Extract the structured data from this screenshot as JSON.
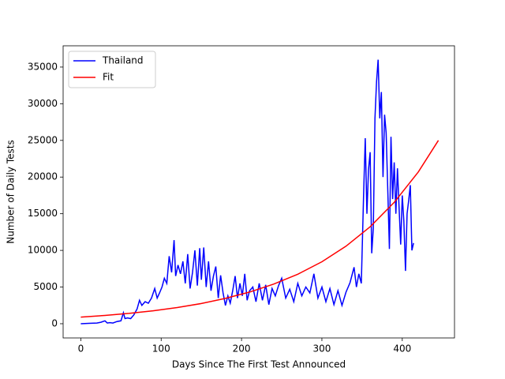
{
  "chart_data": {
    "type": "line",
    "xlabel": "Days Since The First Test Announced",
    "ylabel": "Number of Daily Tests",
    "xlim": [
      -22,
      465
    ],
    "ylim": [
      -1940,
      37900
    ],
    "xticks": [
      0,
      100,
      200,
      300,
      400
    ],
    "yticks": [
      0,
      5000,
      10000,
      15000,
      20000,
      25000,
      30000,
      35000
    ],
    "legend": "upper left",
    "series": [
      {
        "name": "Thailand",
        "color": "#0000ff",
        "x": [
          0,
          10,
          20,
          25,
          30,
          33,
          36,
          40,
          45,
          50,
          53,
          55,
          58,
          62,
          66,
          70,
          73,
          76,
          80,
          84,
          88,
          92,
          95,
          98,
          101,
          104,
          107,
          110,
          113,
          116,
          118,
          121,
          124,
          127,
          130,
          133,
          136,
          139,
          142,
          145,
          148,
          150,
          153,
          156,
          159,
          162,
          165,
          168,
          171,
          174,
          177,
          180,
          183,
          186,
          189,
          192,
          195,
          198,
          201,
          204,
          207,
          210,
          214,
          218,
          222,
          226,
          230,
          234,
          238,
          242,
          246,
          250,
          255,
          260,
          265,
          270,
          275,
          280,
          285,
          290,
          295,
          300,
          305,
          310,
          315,
          320,
          325,
          330,
          335,
          340,
          343,
          346,
          349,
          352,
          354,
          356,
          358,
          360,
          362,
          364,
          366,
          368,
          370,
          372,
          374,
          376,
          378,
          380,
          382,
          384,
          386,
          388,
          390,
          392,
          394,
          396,
          398,
          400,
          402,
          404,
          406,
          408,
          410,
          412,
          414
        ],
        "values": [
          0,
          50,
          100,
          200,
          400,
          100,
          150,
          100,
          300,
          400,
          1500,
          700,
          800,
          700,
          1200,
          2000,
          3200,
          2500,
          3000,
          2800,
          3500,
          4800,
          3500,
          4200,
          5000,
          6200,
          5500,
          9200,
          7000,
          11400,
          6500,
          8000,
          6800,
          8500,
          5500,
          9500,
          4800,
          7000,
          10000,
          5200,
          10300,
          6000,
          10400,
          5000,
          8500,
          4500,
          6500,
          7800,
          3500,
          6600,
          4200,
          2500,
          3800,
          2800,
          4500,
          6500,
          3500,
          5500,
          3800,
          6800,
          3200,
          4500,
          5000,
          3000,
          5500,
          3200,
          5300,
          2600,
          4800,
          3800,
          5200,
          6200,
          3500,
          4700,
          3000,
          5500,
          3800,
          5000,
          4200,
          6800,
          3500,
          5000,
          3000,
          4800,
          2600,
          4500,
          2500,
          4300,
          5600,
          7700,
          5000,
          6800,
          5500,
          18000,
          25300,
          15000,
          21000,
          23400,
          9600,
          13000,
          28000,
          33000,
          36000,
          28000,
          31600,
          20000,
          28500,
          26000,
          18000,
          10200,
          25500,
          17000,
          22000,
          15000,
          21200,
          16000,
          10800,
          17500,
          14000,
          7200,
          15000,
          16800,
          18900,
          10000,
          11000
        ]
      },
      {
        "name": "Fit",
        "color": "#ff0000",
        "x": [
          0,
          30,
          60,
          90,
          120,
          150,
          180,
          210,
          240,
          270,
          300,
          330,
          360,
          390,
          420,
          445
        ],
        "values": [
          900,
          1126,
          1409,
          1762,
          2204,
          2758,
          3450,
          4316,
          5399,
          6754,
          8451,
          10573,
          13223,
          16543,
          20700,
          25000
        ]
      }
    ]
  }
}
